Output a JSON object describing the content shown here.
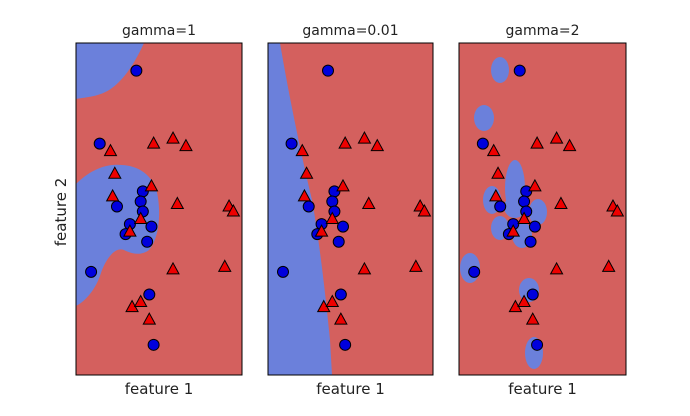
{
  "figure": {
    "ylabel": "feature 2"
  },
  "chart_data": [
    {
      "type": "scatter",
      "title": "gamma=1",
      "xlabel": "feature 1",
      "ylabel": "feature 2",
      "grid": false,
      "ticks": "hidden",
      "decision_region": "blue class region: top-left corner lobe and central left lobe; remaining area red",
      "series": [
        {
          "marker": "circle",
          "color": "#0000dd",
          "points": [
            [
              4.3,
              10.9
            ],
            [
              2.6,
              8.0
            ],
            [
              4.6,
              6.1
            ],
            [
              3.4,
              5.5
            ],
            [
              4.5,
              5.7
            ],
            [
              4.6,
              5.3
            ],
            [
              4.0,
              4.8
            ],
            [
              5.0,
              4.7
            ],
            [
              3.8,
              4.4
            ],
            [
              4.8,
              4.1
            ],
            [
              2.2,
              2.9
            ],
            [
              4.9,
              2.0
            ],
            [
              5.1,
              0.0
            ]
          ]
        },
        {
          "marker": "triangle",
          "color": "#ee0000",
          "points": [
            [
              6.0,
              8.2
            ],
            [
              5.1,
              8.0
            ],
            [
              6.6,
              7.9
            ],
            [
              3.1,
              7.7
            ],
            [
              3.3,
              6.8
            ],
            [
              5.0,
              6.3
            ],
            [
              3.2,
              5.9
            ],
            [
              6.2,
              5.6
            ],
            [
              4.5,
              5.0
            ],
            [
              4.0,
              4.5
            ],
            [
              8.6,
              5.5
            ],
            [
              8.8,
              5.3
            ],
            [
              6.0,
              3.0
            ],
            [
              8.4,
              3.1
            ],
            [
              4.1,
              1.5
            ],
            [
              4.5,
              1.7
            ],
            [
              4.9,
              1.0
            ]
          ]
        }
      ]
    },
    {
      "type": "scatter",
      "title": "gamma=0.01",
      "xlabel": "feature 1",
      "grid": false,
      "ticks": "hidden",
      "decision_region": "blue class region: left strip bounded by a smooth curve; remaining area red",
      "series": [
        {
          "marker": "circle",
          "color": "#0000dd",
          "points": [
            [
              4.3,
              10.9
            ],
            [
              2.6,
              8.0
            ],
            [
              4.6,
              6.1
            ],
            [
              3.4,
              5.5
            ],
            [
              4.5,
              5.7
            ],
            [
              4.6,
              5.3
            ],
            [
              4.0,
              4.8
            ],
            [
              5.0,
              4.7
            ],
            [
              3.8,
              4.4
            ],
            [
              4.8,
              4.1
            ],
            [
              2.2,
              2.9
            ],
            [
              4.9,
              2.0
            ],
            [
              5.1,
              0.0
            ]
          ]
        },
        {
          "marker": "triangle",
          "color": "#ee0000",
          "points": [
            [
              6.0,
              8.2
            ],
            [
              5.1,
              8.0
            ],
            [
              6.6,
              7.9
            ],
            [
              3.1,
              7.7
            ],
            [
              3.3,
              6.8
            ],
            [
              5.0,
              6.3
            ],
            [
              3.2,
              5.9
            ],
            [
              6.2,
              5.6
            ],
            [
              4.5,
              5.0
            ],
            [
              4.0,
              4.5
            ],
            [
              8.6,
              5.5
            ],
            [
              8.8,
              5.3
            ],
            [
              6.0,
              3.0
            ],
            [
              8.4,
              3.1
            ],
            [
              4.1,
              1.5
            ],
            [
              4.5,
              1.7
            ],
            [
              4.9,
              1.0
            ]
          ]
        }
      ]
    },
    {
      "type": "scatter",
      "title": "gamma=2",
      "xlabel": "feature 1",
      "grid": false,
      "ticks": "hidden",
      "decision_region": "blue class region: small islands around each blue point; remaining area red",
      "series": [
        {
          "marker": "circle",
          "color": "#0000dd",
          "points": [
            [
              4.3,
              10.9
            ],
            [
              2.6,
              8.0
            ],
            [
              4.6,
              6.1
            ],
            [
              3.4,
              5.5
            ],
            [
              4.5,
              5.7
            ],
            [
              4.6,
              5.3
            ],
            [
              4.0,
              4.8
            ],
            [
              5.0,
              4.7
            ],
            [
              3.8,
              4.4
            ],
            [
              4.8,
              4.1
            ],
            [
              2.2,
              2.9
            ],
            [
              4.9,
              2.0
            ],
            [
              5.1,
              0.0
            ]
          ]
        },
        {
          "marker": "triangle",
          "color": "#ee0000",
          "points": [
            [
              6.0,
              8.2
            ],
            [
              5.1,
              8.0
            ],
            [
              6.6,
              7.9
            ],
            [
              3.1,
              7.7
            ],
            [
              3.3,
              6.8
            ],
            [
              5.0,
              6.3
            ],
            [
              3.2,
              5.9
            ],
            [
              6.2,
              5.6
            ],
            [
              4.5,
              5.0
            ],
            [
              4.0,
              4.5
            ],
            [
              8.6,
              5.5
            ],
            [
              8.8,
              5.3
            ],
            [
              6.0,
              3.0
            ],
            [
              8.4,
              3.1
            ],
            [
              4.1,
              1.5
            ],
            [
              4.5,
              1.7
            ],
            [
              4.9,
              1.0
            ]
          ]
        }
      ]
    }
  ],
  "colors": {
    "region_red": "#d4605e",
    "region_blue": "#6b80db",
    "circle_fill": "#0000dd",
    "triangle_fill": "#ee0000",
    "marker_edge": "#000000"
  }
}
